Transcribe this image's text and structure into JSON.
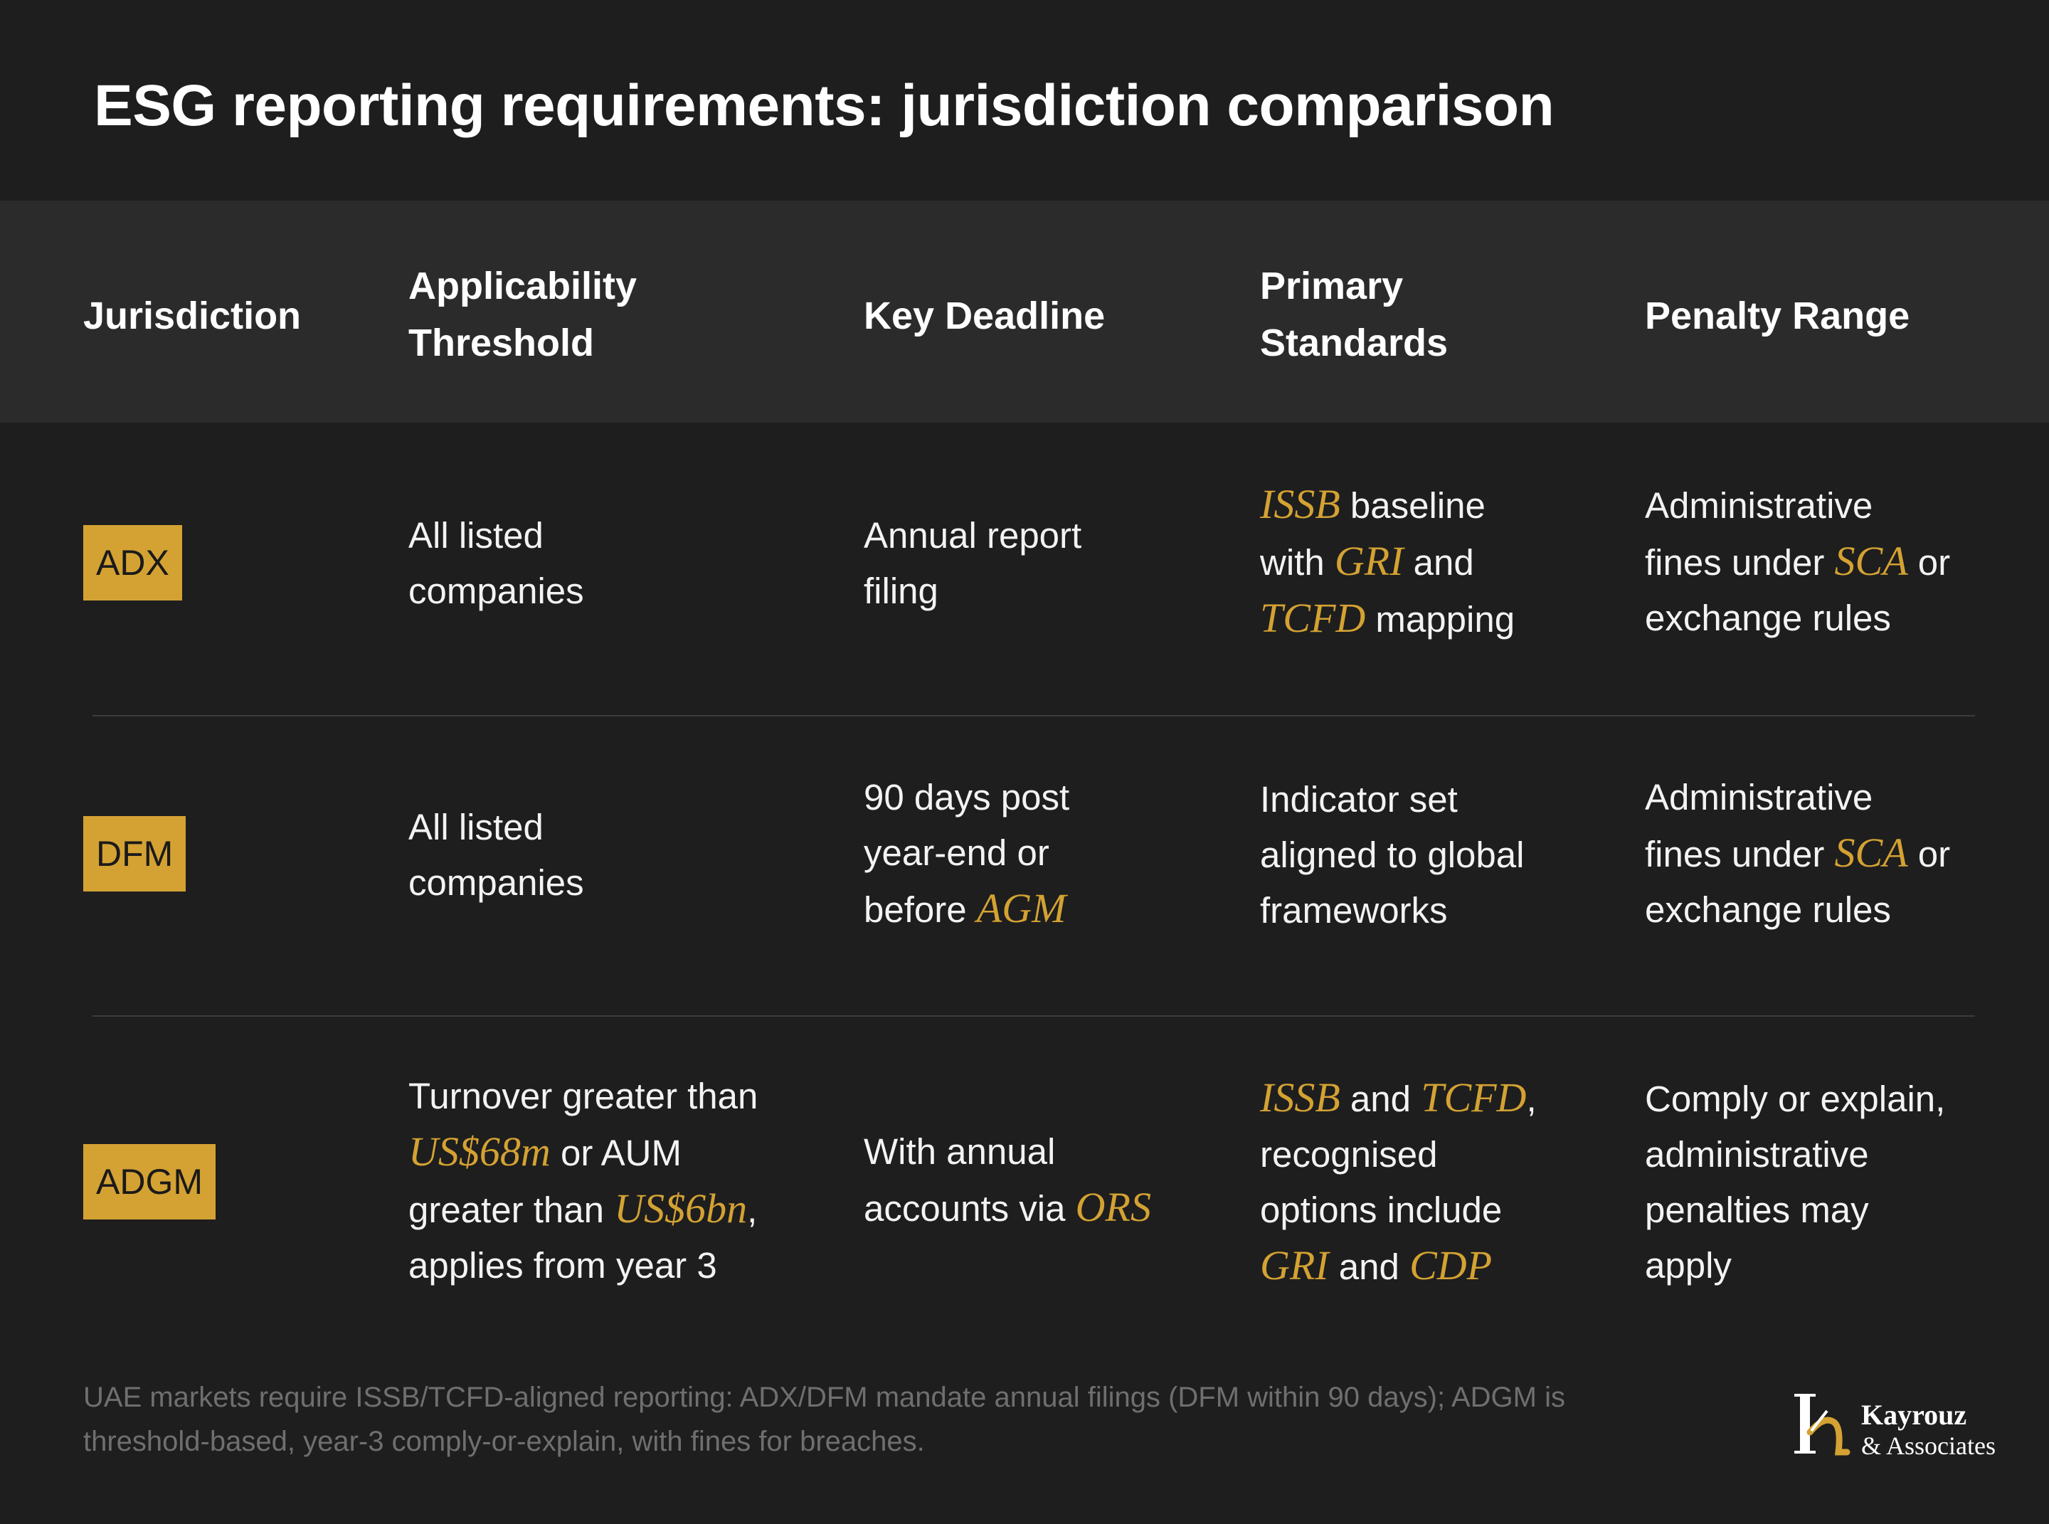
{
  "title": "ESG reporting requirements: jurisdiction comparison",
  "headers": {
    "jurisdiction": [
      "Jurisdiction"
    ],
    "threshold": [
      "Applicability",
      "Threshold"
    ],
    "deadline": [
      "Key Deadline"
    ],
    "standards": [
      "Primary",
      "Standards"
    ],
    "penalty": [
      "Penalty Range"
    ]
  },
  "rows": [
    {
      "badge": "ADX",
      "threshold": [
        "All listed",
        "companies"
      ],
      "deadline": [
        "Annual report",
        "filing"
      ],
      "standards": {
        "s1": "ISSB",
        "s2": " baseline",
        "s3": "with ",
        "s4": "GRI",
        "s5": " and",
        "s6": "TCFD",
        "s7": " mapping"
      },
      "penalty": {
        "p1": "Administrative",
        "p2": "fines under ",
        "p3": "SCA",
        "p4": " or",
        "p5": "exchange rules"
      }
    },
    {
      "badge": "DFM",
      "threshold": [
        "All listed",
        "companies"
      ],
      "deadline": {
        "d1": "90 days post",
        "d2": "year-end or",
        "d3": "before ",
        "d4": "AGM"
      },
      "standards": [
        "Indicator set",
        "aligned to global",
        "frameworks"
      ],
      "penalty": {
        "p1": "Administrative",
        "p2": "fines under ",
        "p3": "SCA",
        "p4": " or",
        "p5": "exchange rules"
      }
    },
    {
      "badge": "ADGM",
      "threshold": {
        "t1": "Turnover greater than",
        "t2": "US$68m",
        "t3": " or AUM",
        "t4": "greater than ",
        "t5": "US$6bn",
        "t6": ",",
        "t7": "applies from year 3"
      },
      "deadline": {
        "d1": "With annual",
        "d2": "accounts via ",
        "d3": "ORS"
      },
      "standards": {
        "s1": "ISSB",
        "s2": " and ",
        "s3": "TCFD",
        "s4": ",",
        "s5": "recognised",
        "s6": "options include",
        "s7": "GRI",
        "s8": " and ",
        "s9": "CDP"
      },
      "penalty": [
        "Comply or explain,",
        "administrative",
        "penalties may",
        "apply"
      ]
    }
  ],
  "footnote": "UAE markets require ISSB/TCFD-aligned reporting: ADX/DFM mandate annual filings (DFM within 90 days); ADGM is threshold-based, year-3 comply-or-explain, with fines for breaches.",
  "logo": {
    "line1": "Kayrouz",
    "line2": "& Associates"
  },
  "colors": {
    "background": "#1e1e1e",
    "header_band": "#2b2b2b",
    "accent": "#d4a233",
    "footnote": "#6f6f6f"
  }
}
